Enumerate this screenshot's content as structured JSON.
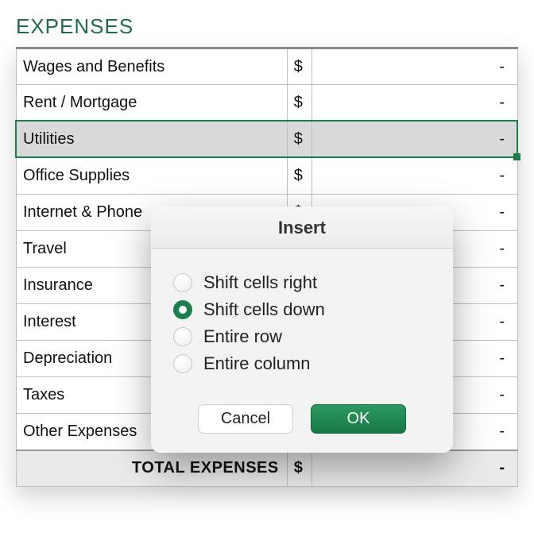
{
  "section_title": "EXPENSES",
  "currency_symbol": "$",
  "empty_value": "-",
  "selected_row_index": 2,
  "rows": [
    {
      "label": "Wages and Benefits",
      "value": "-"
    },
    {
      "label": "Rent / Mortgage",
      "value": "-"
    },
    {
      "label": "Utilities",
      "value": "-"
    },
    {
      "label": "Office Supplies",
      "value": "-"
    },
    {
      "label": "Internet & Phone",
      "value": "-"
    },
    {
      "label": "Travel",
      "value": "-"
    },
    {
      "label": "Insurance",
      "value": "-"
    },
    {
      "label": "Interest",
      "value": "-"
    },
    {
      "label": "Depreciation",
      "value": "-"
    },
    {
      "label": "Taxes",
      "value": "-"
    },
    {
      "label": "Other Expenses",
      "value": "-"
    }
  ],
  "total": {
    "label": "TOTAL EXPENSES",
    "value": "-"
  },
  "dialog": {
    "title": "Insert",
    "options": [
      {
        "key": "shift_right",
        "label": "Shift cells right",
        "checked": false
      },
      {
        "key": "shift_down",
        "label": "Shift cells down",
        "checked": true
      },
      {
        "key": "entire_row",
        "label": "Entire row",
        "checked": false
      },
      {
        "key": "entire_column",
        "label": "Entire column",
        "checked": false
      }
    ],
    "cancel_label": "Cancel",
    "ok_label": "OK"
  },
  "colors": {
    "accent_green": "#1a7f4b",
    "title_green": "#1f6b4a",
    "border_gray": "#bfbfbf",
    "selected_bg": "#d9d9d9",
    "total_bg": "#eaeaea",
    "dialog_bg": "#f3f3f3"
  }
}
